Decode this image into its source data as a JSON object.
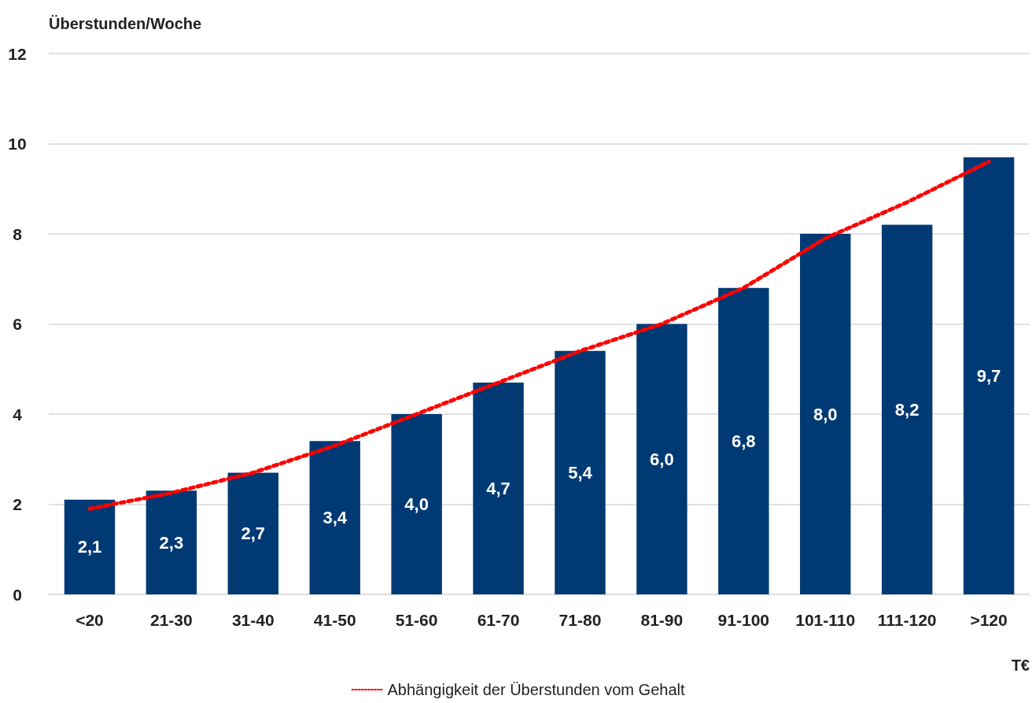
{
  "chart_data": {
    "type": "bar",
    "ylabel": "Überstunden/Woche",
    "xlabel": "T€",
    "categories": [
      "<20",
      "21-30",
      "31-40",
      "41-50",
      "51-60",
      "61-70",
      "71-80",
      "81-90",
      "91-100",
      "101-110",
      "111-120",
      ">120"
    ],
    "series": [
      {
        "color": "#003a74",
        "values": [
          2.1,
          2.3,
          2.7,
          3.4,
          4.0,
          4.7,
          5.4,
          6.0,
          6.8,
          8.0,
          8.2,
          9.7
        ],
        "value_labels": [
          "2,1",
          "2,3",
          "2,7",
          "3,4",
          "4,0",
          "4,7",
          "5,4",
          "6,0",
          "6,8",
          "8,0",
          "8,2",
          "9,7"
        ]
      },
      {
        "type": "line",
        "name": "Abhängigkeit der Überstunden vom Gehalt",
        "color": "#ff0000",
        "line_style": "dotted",
        "marker": "none",
        "values": [
          1.9,
          2.25,
          2.7,
          3.3,
          4.0,
          4.7,
          5.4,
          6.0,
          6.8,
          7.9,
          8.7,
          9.6
        ]
      }
    ],
    "ylim": [
      0,
      12
    ],
    "yticks": [
      0,
      2,
      4,
      6,
      8,
      10,
      12
    ],
    "grid": "y",
    "legend": "bottom"
  }
}
